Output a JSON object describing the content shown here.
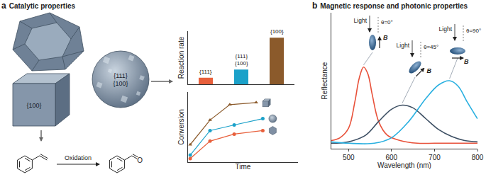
{
  "panels": [
    {
      "label": "a",
      "title": "Catalytic properties"
    },
    {
      "label": "b",
      "title": "Magnetic response and photonic properties"
    }
  ],
  "diagram": {
    "cube_facets": [
      "{100}"
    ],
    "sphere_facets": [
      "{111}",
      "{100}"
    ],
    "reaction": {
      "label": "Oxidation",
      "product_atom": "O"
    }
  },
  "chart_data": [
    {
      "type": "bar",
      "y_label": "Reaction rate",
      "categories": [
        "{111}",
        "{111}\n{100}",
        "{100}"
      ],
      "values": [
        0.8,
        1.8,
        5.7
      ],
      "colors": [
        "#e8603c",
        "#1ba1c9",
        "#8b5a2b"
      ],
      "ylim": [
        0,
        6.5
      ],
      "yticks": [],
      "tick_labels": false,
      "grid": false
    },
    {
      "type": "line",
      "x_label": "Time",
      "y_label": "Conversion",
      "xlim": [
        0,
        1
      ],
      "ylim": [
        0,
        1
      ],
      "xticks": [],
      "yticks": [],
      "tick_labels": false,
      "grid": false,
      "series": [
        {
          "color": "#8b5a2b",
          "marker": "triangle-up",
          "x": [
            0.02,
            0.2,
            0.38,
            0.62
          ],
          "values": [
            0.25,
            0.6,
            0.82,
            0.85
          ]
        },
        {
          "color": "#1ba1c9",
          "marker": "circle",
          "x": [
            0.02,
            0.2,
            0.42,
            0.68
          ],
          "values": [
            0.1,
            0.45,
            0.53,
            0.62
          ]
        },
        {
          "color": "#e8603c",
          "marker": "circle",
          "x": [
            0.02,
            0.2,
            0.42,
            0.68
          ],
          "values": [
            0.05,
            0.3,
            0.4,
            0.45
          ]
        }
      ]
    },
    {
      "type": "line",
      "x_label": "Wavelength (nm)",
      "y_label": "Reflectance",
      "xlim": [
        460,
        800
      ],
      "ylim": [
        0,
        1
      ],
      "xticks": [
        500,
        600,
        700,
        800
      ],
      "yticks": [],
      "tick_labels": "x",
      "grid": false,
      "series": [
        {
          "color": "#e8513a",
          "x": [
            460,
            480,
            500,
            515,
            525,
            535,
            545,
            555,
            570,
            590,
            620,
            660,
            700,
            750,
            800
          ],
          "values": [
            0.06,
            0.08,
            0.15,
            0.35,
            0.52,
            0.6,
            0.55,
            0.4,
            0.2,
            0.1,
            0.06,
            0.04,
            0.04,
            0.04,
            0.04
          ]
        },
        {
          "color": "#3d4f63",
          "x": [
            460,
            500,
            540,
            570,
            600,
            625,
            650,
            680,
            710,
            740,
            770,
            800
          ],
          "values": [
            0.04,
            0.05,
            0.1,
            0.2,
            0.29,
            0.32,
            0.3,
            0.22,
            0.14,
            0.09,
            0.06,
            0.05
          ]
        },
        {
          "color": "#2ab0e0",
          "x": [
            460,
            500,
            560,
            600,
            640,
            680,
            710,
            735,
            755,
            775,
            800
          ],
          "values": [
            0.05,
            0.04,
            0.04,
            0.08,
            0.2,
            0.37,
            0.47,
            0.5,
            0.46,
            0.35,
            0.22
          ]
        }
      ],
      "insets": [
        {
          "light": "Light",
          "angle": "θ=0°",
          "field": "B"
        },
        {
          "light": "Light",
          "angle": "θ=45°",
          "field": "B"
        },
        {
          "light": "Light",
          "angle": "θ=90°",
          "field": "B"
        }
      ]
    }
  ]
}
